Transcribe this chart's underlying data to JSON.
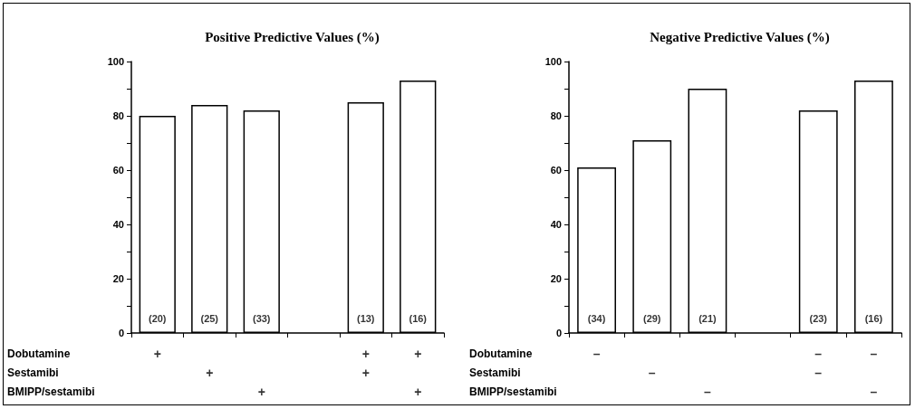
{
  "chart_data": [
    {
      "type": "bar",
      "title": "Positive Predictive Values (%)",
      "categories": [
        null,
        null,
        null,
        null,
        null,
        null
      ],
      "values": [
        80,
        84,
        82,
        null,
        85,
        93
      ],
      "color": "#ffffff",
      "ylim": [
        0,
        100
      ],
      "yticks": [
        0,
        {
          "value": 10,
          "label": null
        },
        20,
        {
          "value": 30,
          "label": null
        },
        40,
        {
          "value": 50,
          "label": null
        },
        60,
        {
          "value": 70,
          "label": null
        },
        80,
        {
          "value": 90,
          "label": null
        },
        100
      ],
      "annotations": [
        "(20)",
        "(25)",
        "(33)",
        "(13)",
        "(16)"
      ]
    },
    {
      "type": "other",
      "categories": [
        null,
        null,
        null,
        null,
        null,
        null
      ],
      "y_categories": [
        "Dobutamine",
        "Sestamibi",
        "BMIPP/sestamibi"
      ],
      "cell_labels": [
        [
          "+",
          null,
          null,
          null,
          "+",
          "+"
        ],
        [
          null,
          "+",
          null,
          null,
          "+",
          null
        ],
        [
          null,
          null,
          "+",
          null,
          null,
          "+"
        ]
      ]
    },
    {
      "type": "bar",
      "title": "Negative Predictive Values (%)",
      "categories": [
        null,
        null,
        null,
        null,
        null,
        null
      ],
      "values": [
        61,
        71,
        90,
        null,
        82,
        93
      ],
      "color": "#ffffff",
      "ylim": [
        0,
        100
      ],
      "yticks": [
        0,
        {
          "value": 10,
          "label": null
        },
        20,
        {
          "value": 30,
          "label": null
        },
        40,
        {
          "value": 50,
          "label": null
        },
        60,
        {
          "value": 70,
          "label": null
        },
        80,
        {
          "value": 90,
          "label": null
        },
        100
      ],
      "annotations": [
        "(34)",
        "(29)",
        "(21)",
        "(23)",
        "(16)"
      ]
    },
    {
      "type": "other",
      "categories": [
        null,
        null,
        null,
        null,
        null,
        null
      ],
      "y_categories": [
        "Dobutamine",
        "Sestamibi",
        "BMIPP/sestamibi"
      ],
      "cell_labels": [
        [
          "–",
          null,
          null,
          null,
          "–",
          "–"
        ],
        [
          null,
          "–",
          null,
          null,
          "–",
          null
        ],
        [
          null,
          null,
          "–",
          null,
          null,
          "–"
        ]
      ]
    }
  ]
}
